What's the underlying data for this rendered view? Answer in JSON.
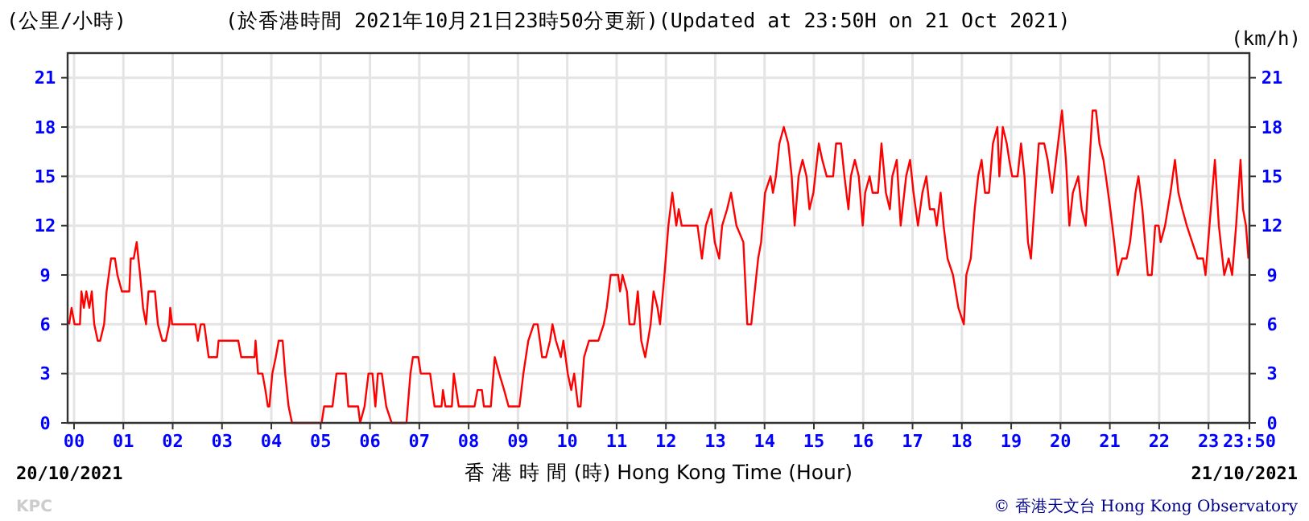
{
  "chart_data": {
    "type": "line",
    "title": "(於香港時間 2021年10月21日23時50分更新)(Updated at 23:50H on 21 Oct 2021)",
    "ylabel": "(公里/小時)",
    "y2label": "(km/h)",
    "xlabel": "香 港 時 間 (時) Hong Kong Time (Hour)",
    "annotations": [
      "20/10/2021",
      "21/10/2021",
      "KPC",
      "© 香港天文台 Hong Kong Observatory"
    ],
    "xlim": [
      -0.13,
      23.83
    ],
    "ylim": [
      0,
      22.5
    ],
    "y2lim": [
      0,
      22.5
    ],
    "xticks": [
      {
        "value": 0,
        "label": "00"
      },
      {
        "value": 1,
        "label": "01"
      },
      {
        "value": 2,
        "label": "02"
      },
      {
        "value": 3,
        "label": "03"
      },
      {
        "value": 4,
        "label": "04"
      },
      {
        "value": 5,
        "label": "05"
      },
      {
        "value": 6,
        "label": "06"
      },
      {
        "value": 7,
        "label": "07"
      },
      {
        "value": 8,
        "label": "08"
      },
      {
        "value": 9,
        "label": "09"
      },
      {
        "value": 10,
        "label": "10"
      },
      {
        "value": 11,
        "label": "11"
      },
      {
        "value": 12,
        "label": "12"
      },
      {
        "value": 13,
        "label": "13"
      },
      {
        "value": 14,
        "label": "14"
      },
      {
        "value": 15,
        "label": "15"
      },
      {
        "value": 16,
        "label": "16"
      },
      {
        "value": 17,
        "label": "17"
      },
      {
        "value": 18,
        "label": "18"
      },
      {
        "value": 19,
        "label": "19"
      },
      {
        "value": 20,
        "label": "20"
      },
      {
        "value": 21,
        "label": "21"
      },
      {
        "value": 22,
        "label": "22"
      },
      {
        "value": 23,
        "label": "23"
      },
      {
        "value": 23.83,
        "label": "23:50"
      }
    ],
    "yticks": [
      0,
      3,
      6,
      9,
      12,
      15,
      18,
      21
    ],
    "y2ticks": [
      0,
      3,
      6,
      9,
      12,
      15,
      18,
      21
    ],
    "grid": true,
    "marker": "none",
    "line_style": "solid",
    "series": [
      {
        "color": "#ff0000",
        "x": [
          -0.1,
          -0.05,
          0.01,
          0.12,
          0.15,
          0.2,
          0.25,
          0.31,
          0.36,
          0.41,
          0.48,
          0.53,
          0.61,
          0.66,
          0.75,
          0.83,
          0.88,
          0.97,
          1.12,
          1.15,
          1.21,
          1.27,
          1.34,
          1.4,
          1.46,
          1.51,
          1.64,
          1.7,
          1.79,
          1.86,
          1.93,
          1.95,
          1.99,
          2.46,
          2.51,
          2.57,
          2.64,
          2.73,
          2.9,
          2.93,
          3.06,
          3.33,
          3.39,
          3.66,
          3.68,
          3.73,
          3.82,
          3.88,
          3.93,
          3.96,
          4.02,
          4.09,
          4.15,
          4.23,
          4.28,
          4.35,
          4.42,
          5.02,
          5.07,
          5.24,
          5.32,
          5.51,
          5.56,
          5.76,
          5.8,
          5.89,
          5.97,
          6.05,
          6.11,
          6.16,
          6.24,
          6.33,
          6.44,
          6.74,
          6.82,
          6.87,
          6.98,
          7.03,
          7.22,
          7.31,
          7.45,
          7.48,
          7.53,
          7.66,
          7.7,
          7.8,
          7.96,
          8.12,
          8.18,
          8.27,
          8.31,
          8.45,
          8.53,
          8.62,
          8.72,
          8.81,
          9.03,
          9.11,
          9.21,
          9.32,
          9.4,
          9.49,
          9.57,
          9.65,
          9.7,
          9.77,
          9.87,
          9.92,
          10.01,
          10.08,
          10.14,
          10.22,
          10.27,
          10.34,
          10.44,
          10.63,
          10.74,
          10.8,
          10.88,
          11.03,
          11.07,
          11.12,
          11.21,
          11.26,
          11.36,
          11.43,
          11.5,
          11.58,
          11.69,
          11.75,
          11.83,
          11.88,
          11.97,
          12.05,
          12.13,
          12.21,
          12.26,
          12.32,
          12.64,
          12.73,
          12.81,
          12.92,
          12.99,
          13.08,
          13.14,
          13.24,
          13.32,
          13.43,
          13.57,
          13.65,
          13.73,
          13.8,
          13.87,
          13.93,
          14.01,
          14.12,
          14.17,
          14.23,
          14.3,
          14.39,
          14.48,
          14.55,
          14.61,
          14.69,
          14.77,
          14.85,
          14.91,
          14.99,
          15.1,
          15.17,
          15.26,
          15.39,
          15.45,
          15.55,
          15.62,
          15.7,
          15.75,
          15.83,
          15.91,
          15.99,
          16.04,
          16.13,
          16.19,
          16.3,
          16.37,
          16.46,
          16.54,
          16.59,
          16.68,
          16.76,
          16.87,
          16.95,
          17.02,
          17.11,
          17.2,
          17.28,
          17.35,
          17.44,
          17.49,
          17.57,
          17.63,
          17.71,
          17.82,
          17.93,
          18.04,
          18.09,
          18.18,
          18.26,
          18.33,
          18.4,
          18.47,
          18.55,
          18.63,
          18.72,
          18.76,
          18.83,
          18.91,
          18.96,
          19.02,
          19.13,
          19.2,
          19.27,
          19.34,
          19.4,
          19.49,
          19.56,
          19.67,
          19.74,
          19.83,
          19.91,
          19.99,
          20.03,
          20.11,
          20.18,
          20.25,
          20.36,
          20.43,
          20.51,
          20.59,
          20.65,
          20.72,
          20.79,
          20.87,
          20.92,
          21.01,
          21.09,
          21.16,
          21.25,
          21.34,
          21.41,
          21.52,
          21.58,
          21.66,
          21.77,
          21.85,
          21.92,
          21.99,
          22.03,
          22.12,
          22.23,
          22.32,
          22.39,
          22.47,
          22.56,
          22.67,
          22.78,
          22.89,
          22.94,
          23.02,
          23.13,
          23.21,
          23.32,
          23.41,
          23.48,
          23.56,
          23.65,
          23.7,
          23.76,
          23.81
        ],
        "values": [
          6,
          7,
          6,
          6,
          8,
          7,
          8,
          7,
          8,
          6,
          5,
          5,
          6,
          8,
          10,
          10,
          9,
          8,
          8,
          10,
          10,
          11,
          9,
          7,
          6,
          8,
          8,
          6,
          5,
          5,
          6,
          7,
          6,
          6,
          5,
          6,
          6,
          4,
          4,
          5,
          5,
          5,
          4,
          4,
          5,
          3,
          3,
          2,
          1,
          1,
          3,
          4,
          5,
          5,
          3,
          1,
          0,
          0,
          1,
          1,
          3,
          3,
          1,
          1,
          0,
          1,
          3,
          3,
          1,
          3,
          3,
          1,
          0,
          0,
          3,
          4,
          4,
          3,
          3,
          1,
          1,
          2,
          1,
          1,
          3,
          1,
          1,
          1,
          2,
          2,
          1,
          1,
          4,
          3,
          2,
          1,
          1,
          3,
          5,
          6,
          6,
          4,
          4,
          5,
          6,
          5,
          4,
          5,
          3,
          2,
          3,
          1,
          1,
          4,
          5,
          5,
          6,
          7,
          9,
          9,
          8,
          9,
          8,
          6,
          6,
          8,
          5,
          4,
          6,
          8,
          7,
          6,
          9,
          12,
          14,
          12,
          13,
          12,
          12,
          10,
          12,
          13,
          11,
          10,
          12,
          13,
          14,
          12,
          11,
          6,
          6,
          8,
          10,
          11,
          14,
          15,
          14,
          15,
          17,
          18,
          17,
          15,
          12,
          15,
          16,
          15,
          13,
          14,
          17,
          16,
          15,
          15,
          17,
          17,
          15,
          13,
          15,
          16,
          15,
          12,
          14,
          15,
          14,
          14,
          17,
          14,
          13,
          15,
          16,
          12,
          15,
          16,
          14,
          12,
          14,
          15,
          13,
          13,
          12,
          14,
          12,
          10,
          9,
          7,
          6,
          9,
          10,
          13,
          15,
          16,
          14,
          14,
          17,
          18,
          15,
          18,
          17,
          16,
          15,
          15,
          17,
          15,
          11,
          10,
          14,
          17,
          17,
          16,
          14,
          16,
          18,
          19,
          16,
          12,
          14,
          15,
          13,
          12,
          16,
          19,
          19,
          17,
          16,
          15,
          13,
          11,
          9,
          10,
          10,
          11,
          14,
          15,
          13,
          9,
          9,
          12,
          12,
          11,
          12,
          14,
          16,
          14,
          13,
          12,
          11,
          10,
          10,
          9,
          12,
          16,
          12,
          9,
          10,
          9,
          12,
          16,
          13,
          12,
          10
        ]
      }
    ]
  }
}
